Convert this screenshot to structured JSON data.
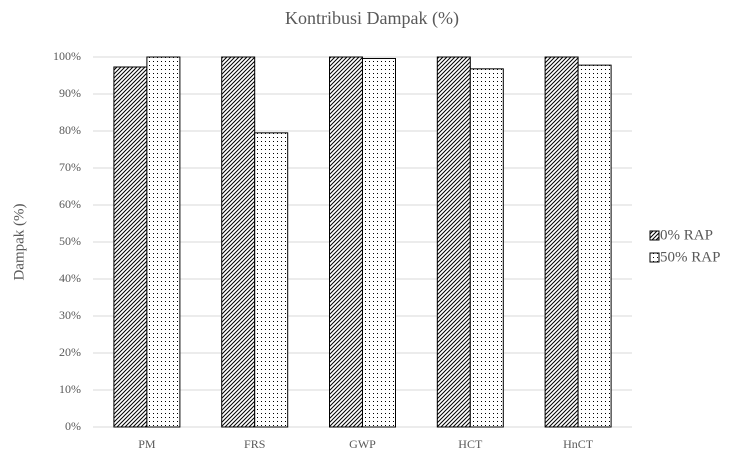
{
  "chart_data": {
    "type": "bar",
    "title": "Kontribusi Dampak (%)",
    "y_label": "Dampak (%)",
    "categories": [
      "PM",
      "FRS",
      "GWP",
      "HCT",
      "HnCT"
    ],
    "series": [
      {
        "name": "0% RAP",
        "color": "#000000",
        "pattern": "hatch",
        "values": [
          97.3,
          100,
          100,
          100,
          100
        ]
      },
      {
        "name": "50% RAP",
        "color": "#000000",
        "pattern": "dots",
        "values": [
          100,
          79.5,
          99.6,
          96.8,
          97.8
        ]
      }
    ],
    "ylim": [
      0,
      100
    ],
    "yticks": [
      {
        "value": 0,
        "label": "0%"
      },
      {
        "value": 10,
        "label": "10%"
      },
      {
        "value": 20,
        "label": "20%"
      },
      {
        "value": 30,
        "label": "30%"
      },
      {
        "value": 40,
        "label": "40%"
      },
      {
        "value": 50,
        "label": "50%"
      },
      {
        "value": 60,
        "label": "60%"
      },
      {
        "value": 70,
        "label": "70%"
      },
      {
        "value": 80,
        "label": "80%"
      },
      {
        "value": 90,
        "label": "90%"
      },
      {
        "value": 100,
        "label": "100%"
      }
    ],
    "grid": true,
    "legend": "right"
  }
}
